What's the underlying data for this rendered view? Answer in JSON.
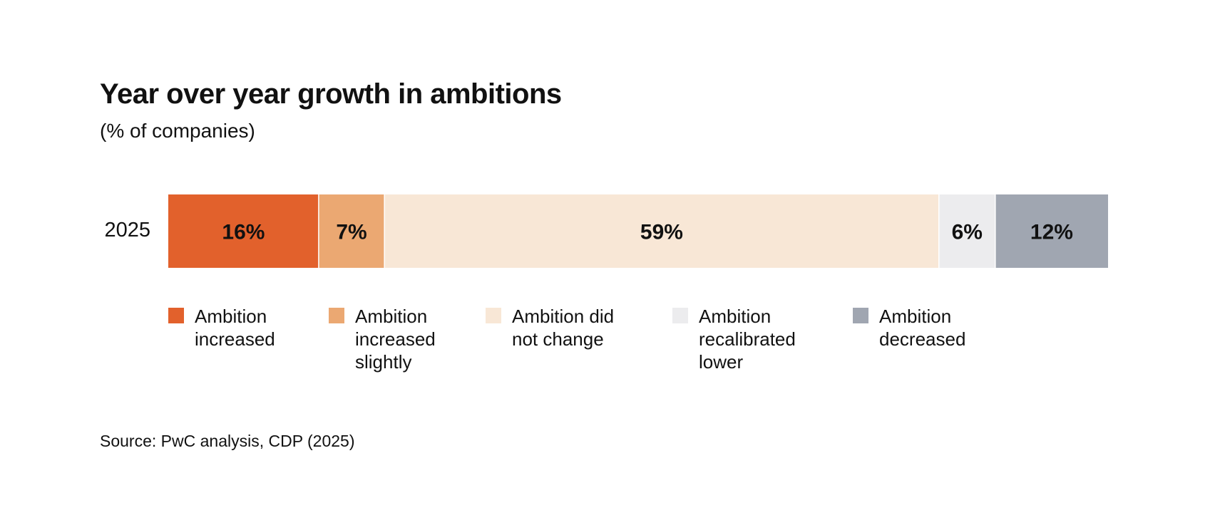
{
  "chart_data": {
    "type": "bar",
    "orientation": "horizontal",
    "stacked": true,
    "title": "Year over year growth in ambitions",
    "subtitle": "(% of companies)",
    "categories": [
      "2025"
    ],
    "series": [
      {
        "name": "Ambition increased",
        "values": [
          16
        ],
        "label": "16%",
        "color": "#E2612C",
        "label_color": "#111111"
      },
      {
        "name": "Ambition increased slightly",
        "values": [
          7
        ],
        "label": "7%",
        "color": "#EBA872",
        "label_color": "#111111"
      },
      {
        "name": "Ambition did not change",
        "values": [
          59
        ],
        "label": "59%",
        "color": "#F8E7D6",
        "label_color": "#111111"
      },
      {
        "name": "Ambition recalibrated lower",
        "values": [
          6
        ],
        "label": "6%",
        "color": "#ECECEE",
        "label_color": "#111111"
      },
      {
        "name": "Ambition decreased",
        "values": [
          12
        ],
        "label": "12%",
        "color": "#A0A6B1",
        "label_color": "#111111"
      }
    ],
    "xlim": [
      0,
      100
    ],
    "grid": false,
    "legend_position": "bottom",
    "source": "Source: PwC analysis, CDP (2025)"
  }
}
